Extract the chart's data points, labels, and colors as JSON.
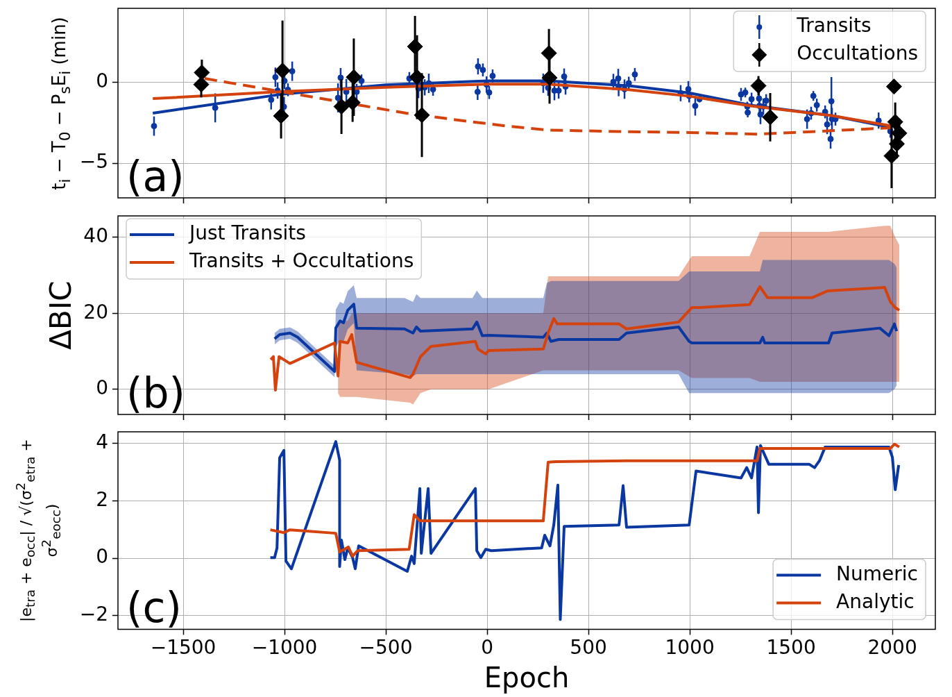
{
  "chart_data": [
    {
      "type": "line",
      "ylabel": "t$_{i}$ − T$_{0}$ − P$_{s}$E$_{i}$ (min)",
      "xlim": [
        -1822,
        2212
      ],
      "xticks": [
        -1500,
        -1000,
        -500,
        0,
        500,
        1000,
        1500,
        2000
      ],
      "ylim": [
        -7.15,
        4.6
      ],
      "yticks": [
        -5,
        0
      ],
      "grid": true,
      "legend": "top right",
      "tick_labels": "y",
      "annotations": [
        "(a)"
      ],
      "series": [
        {
          "name": "Transits",
          "type": "scatter",
          "marker": "circle",
          "color": "#0a37a0",
          "x": [
            -1644,
            -1342,
            -1066,
            -1045,
            -1034,
            -1000,
            -1003,
            -983,
            -962,
            -736,
            -723,
            -695,
            -644,
            -620,
            -384,
            -339,
            -308,
            -288,
            -267,
            -45,
            -47,
            -21,
            -3,
            10,
            27,
            277,
            301,
            332,
            353,
            380,
            387,
            623,
            647,
            649,
            678,
            699,
            729,
            955,
            993,
            997,
            1027,
            1048,
            1253,
            1274,
            1284,
            1286,
            1305,
            1342,
            1344,
            1349,
            1363,
            1377,
            1579,
            1599,
            1610,
            1627,
            1668,
            1678,
            1695,
            1699,
            1702,
            1719,
            1932,
            1990
          ],
          "values": [
            -2.7,
            -1.57,
            -1.07,
            0.33,
            -0.5,
            0.1,
            -1.5,
            -0.45,
            0.7,
            -0.95,
            0.3,
            -0.58,
            -0.58,
            0.1,
            0.25,
            -0.37,
            -0.3,
            -0.05,
            -0.42,
            1.0,
            -0.58,
            0.78,
            -0.12,
            -0.62,
            0.41,
            -0.04,
            -0.33,
            -0.5,
            -0.5,
            0.37,
            -0.25,
            0.04,
            0.25,
            -0.25,
            -0.41,
            -0.04,
            0.5,
            -0.66,
            -0.41,
            -0.83,
            -1.45,
            -1.03,
            -0.74,
            -0.62,
            -1.49,
            -1.86,
            -1.03,
            -0.99,
            -1.45,
            -1.98,
            -1.49,
            -1.12,
            -2.27,
            -1.9,
            -0.83,
            -1.4,
            -1.82,
            -2.6,
            -3.5,
            -1.16,
            -2.27,
            -2.27,
            -2.36,
            -3.02
          ],
          "errors": [
            0.6,
            0.9,
            0.6,
            0.6,
            0.5,
            0.5,
            0.6,
            0.4,
            0.6,
            0.9,
            0.6,
            0.8,
            0.5,
            0.4,
            0.4,
            0.6,
            0.5,
            0.6,
            0.4,
            0.5,
            0.5,
            0.4,
            0.5,
            0.4,
            0.4,
            0.6,
            0.5,
            0.6,
            0.5,
            0.5,
            0.5,
            0.5,
            0.6,
            0.6,
            0.6,
            0.4,
            0.4,
            0.5,
            0.5,
            0.4,
            0.6,
            0.2,
            0.4,
            0.3,
            0.3,
            0.3,
            0.4,
            0.5,
            0.5,
            0.6,
            0.5,
            0.4,
            0.6,
            0.4,
            0.3,
            0.4,
            0.4,
            0.6,
            0.6,
            1.5,
            0.7,
            0.4,
            0.5,
            0.4
          ]
        },
        {
          "name": "Occultations",
          "type": "scatter",
          "marker": "diamond",
          "color": "#000000",
          "x": [
            -1411,
            -1408,
            -1017,
            -1010,
            -719,
            -664,
            -658,
            -356,
            -346,
            -322,
            305,
            308,
            1339,
            1397,
            1996,
            2008,
            2014,
            2022,
            2034
          ],
          "values": [
            -0.12,
            0.62,
            -2.07,
            0.74,
            -1.49,
            -1.24,
            0.33,
            2.23,
            0.33,
            -2.02,
            1.82,
            0.29,
            -0.2,
            -2.15,
            -4.55,
            -0.25,
            -2.44,
            -3.8,
            -3.14
          ],
          "errors": [
            0.8,
            0.8,
            1.4,
            3.1,
            1.7,
            1.2,
            2.4,
            1.9,
            2.6,
            2.6,
            1.5,
            1.6,
            0.6,
            1.5,
            2.0,
            0.4,
            1.2,
            0.9,
            0.9
          ]
        },
        {
          "type": "line",
          "color": "#0a37a0",
          "x": [
            -1650,
            -1000,
            -500,
            0,
            300,
            700,
            1000,
            1300,
            1700,
            2000
          ],
          "values": [
            -1.9,
            -0.7,
            -0.15,
            0.1,
            0.1,
            -0.2,
            -0.65,
            -1.4,
            -2.05,
            -2.8
          ]
        },
        {
          "type": "line",
          "color": "#d4430e",
          "x": [
            -1650,
            -1000,
            -500,
            0,
            300,
            700,
            1000,
            1300,
            1700,
            2000
          ],
          "values": [
            -1.0,
            -0.55,
            -0.3,
            -0.1,
            -0.1,
            -0.45,
            -0.85,
            -1.45,
            -2.05,
            -2.7
          ]
        },
        {
          "type": "line",
          "color": "#d4430e",
          "line_style": "dashed",
          "x": [
            -1394,
            -1000,
            -700,
            -400,
            -100,
            100,
            300,
            700,
            1000,
            1330,
            1600,
            2000
          ],
          "values": [
            0.25,
            -0.6,
            -1.25,
            -1.9,
            -2.4,
            -2.7,
            -2.95,
            -3.05,
            -3.1,
            -3.2,
            -3.05,
            -2.8
          ]
        }
      ]
    },
    {
      "type": "line",
      "ylabel": "ΔBIC",
      "xlim": [
        -1822,
        2212
      ],
      "xticks": [
        -1500,
        -1000,
        -500,
        0,
        500,
        1000,
        1500,
        2000
      ],
      "ylim": [
        -6.6,
        45.6
      ],
      "yticks": [
        0,
        20,
        40
      ],
      "grid": true,
      "legend": "top left",
      "tick_labels": "y",
      "annotations": [
        "(b)"
      ],
      "series": [
        {
          "name": "Just Transits",
          "color": "#0a37a0",
          "x": [
            -1049,
            -1024,
            -973,
            -935,
            -753,
            -747,
            -726,
            -709,
            -688,
            -658,
            -644,
            -408,
            -366,
            -349,
            -329,
            -72,
            -51,
            -24,
            7,
            277,
            295,
            315,
            353,
            651,
            688,
            945,
            997,
            1010,
            1346,
            1360,
            1370,
            1685,
            1702,
            1938,
            1983,
            2010,
            2021
          ],
          "values": [
            13.3,
            14.4,
            14.8,
            13.7,
            4.7,
            16.1,
            18,
            17.5,
            20.8,
            22.4,
            16.1,
            15.9,
            14.8,
            16.4,
            15.3,
            15.9,
            17.7,
            14.1,
            14.2,
            13.7,
            14.8,
            12.6,
            13.1,
            13.1,
            14.8,
            16.4,
            12.6,
            12.2,
            12.2,
            13.7,
            12.2,
            12.2,
            14.8,
            16.1,
            14.1,
            17.2,
            15.3
          ],
          "lower": [
            11.8,
            12.9,
            13.3,
            12.2,
            3.2,
            11,
            13,
            12.5,
            15.8,
            17.4,
            5,
            4,
            3.5,
            4,
            4,
            4,
            4,
            4,
            4,
            4,
            4,
            4,
            4,
            4,
            4,
            4,
            -1,
            -1,
            -1,
            -1,
            -1,
            -1,
            -1,
            -1,
            -1,
            0,
            1
          ],
          "upper": [
            14.8,
            15.9,
            16.3,
            15.2,
            6.2,
            21,
            23,
            22.5,
            25.8,
            27.4,
            24,
            24,
            23,
            25,
            24,
            24,
            26,
            24,
            24,
            24,
            28,
            28.5,
            28.5,
            28.5,
            28.5,
            28.5,
            31,
            31,
            31,
            34,
            34,
            34,
            34,
            34,
            34,
            33,
            32
          ]
        },
        {
          "name": "Transits + Occultations",
          "color": "#d4430e",
          "x": [
            -1068,
            -1055,
            -1045,
            -1027,
            -973,
            -753,
            -736,
            -726,
            -688,
            -668,
            -644,
            -380,
            -366,
            -329,
            -277,
            -58,
            -45,
            -7,
            7,
            277,
            301,
            329,
            346,
            651,
            688,
            945,
            1010,
            1048,
            1295,
            1346,
            1384,
            1603,
            1682,
            1962,
            1990,
            2014,
            2034
          ],
          "values": [
            7.8,
            8.6,
            -0.2,
            8.6,
            6.8,
            12.2,
            3.5,
            12.6,
            12.2,
            14.4,
            7.1,
            3.1,
            4.0,
            8.6,
            11.3,
            12.6,
            10.6,
            9.3,
            10.2,
            10.6,
            14.8,
            18.6,
            17.2,
            17.2,
            15.9,
            17.7,
            21.5,
            21.5,
            22.3,
            27,
            24.1,
            24.1,
            25.9,
            26.8,
            23,
            21.5,
            20.8
          ],
          "lower": [
            null,
            null,
            null,
            null,
            null,
            null,
            -1,
            -2,
            -2,
            -2,
            -2,
            -3.5,
            -4,
            -1,
            0,
            0,
            0,
            0,
            0,
            5,
            5,
            5,
            5,
            5,
            5,
            5,
            3,
            3,
            3,
            2,
            2,
            2,
            2,
            2,
            2,
            2,
            2
          ],
          "upper": [
            null,
            null,
            null,
            null,
            null,
            null,
            16,
            18,
            18,
            20,
            20,
            20,
            20,
            20,
            20,
            20,
            20,
            20,
            20,
            20,
            29.7,
            29.7,
            29.7,
            29.7,
            29.7,
            29.7,
            35,
            35,
            35,
            41.4,
            41.4,
            41.4,
            41.4,
            43,
            43,
            40,
            38
          ]
        }
      ]
    },
    {
      "type": "line",
      "ylabel": "|e$_{tra}$ + e$_{occ}$| / √(σ$^{2}$$_{etra}$ + σ$^{2}$$_{eocc}$)",
      "xlabel": "Epoch",
      "xlim": [
        -1822,
        2212
      ],
      "xticks": [
        -1500,
        -1000,
        -500,
        0,
        500,
        1000,
        1500,
        2000
      ],
      "ylim": [
        -2.48,
        4.41
      ],
      "yticks": [
        -2,
        0,
        2,
        4
      ],
      "grid": true,
      "legend": "bottom right",
      "annotations": [
        "(c)"
      ],
      "series": [
        {
          "name": "Numeric",
          "color": "#0a37a0",
          "x": [
            -1070,
            -1049,
            -1037,
            -1024,
            -1003,
            -993,
            -966,
            -747,
            -728,
            -728,
            -719,
            -702,
            -688,
            -664,
            -651,
            -634,
            -394,
            -373,
            -360,
            -332,
            -325,
            -291,
            -277,
            -58,
            -51,
            -31,
            -7,
            21,
            269,
            284,
            310,
            329,
            349,
            361,
            380,
            651,
            671,
            688,
            997,
            1031,
            1253,
            1281,
            1305,
            1332,
            1339,
            1349,
            1390,
            1589,
            1616,
            1640,
            1668,
            1983,
            2000,
            2014,
            2031
          ],
          "values": [
            0.02,
            0.02,
            0.36,
            3.5,
            3.76,
            -0.1,
            -0.37,
            4.07,
            3.42,
            -0.29,
            0.63,
            -0.05,
            0.36,
            0.02,
            -0.37,
            0.43,
            -0.46,
            0.07,
            -0.19,
            2.43,
            0.17,
            2.43,
            0.17,
            2.43,
            0.26,
            0.02,
            0.31,
            0.26,
            0.36,
            0.8,
            0.43,
            1.16,
            2.55,
            -2.14,
            1.11,
            1.16,
            2.53,
            1.08,
            1.16,
            3.04,
            2.8,
            3.16,
            2.8,
            3.88,
            1.59,
            3.93,
            3.28,
            3.28,
            3.16,
            3.4,
            3.88,
            3.88,
            3.52,
            2.39,
            3.25
          ]
        },
        {
          "name": "Analytic",
          "color": "#d4430e",
          "x": [
            -1070,
            -1003,
            -973,
            -747,
            -728,
            -685,
            -664,
            -640,
            -385,
            -360,
            -332,
            277,
            301,
            339,
            688,
            997,
            1332,
            1346,
            1990,
            2010,
            2034
          ],
          "values": [
            0.99,
            0.89,
            0.99,
            0.87,
            0.22,
            0.39,
            0.07,
            0.26,
            0.31,
            1.52,
            1.3,
            1.3,
            3.35,
            3.37,
            3.4,
            3.4,
            3.4,
            3.83,
            3.83,
            3.98,
            3.88
          ]
        }
      ]
    }
  ]
}
